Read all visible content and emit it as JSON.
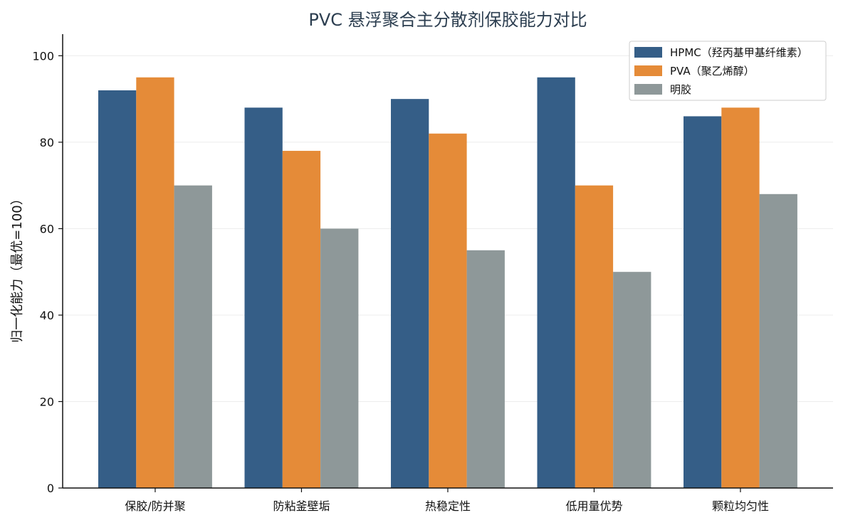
{
  "chart_data": {
    "type": "bar",
    "title": "PVC 悬浮聚合主分散剂保胶能力对比",
    "xlabel": "",
    "ylabel": "归一化能力（最优=100）",
    "categories": [
      "保胶/防并聚",
      "防粘釜壁垢",
      "热稳定性",
      "低用量优势",
      "颗粒均匀性"
    ],
    "series": [
      {
        "name": "HPMC（羟丙基甲基纤维素）",
        "color": "#355e87",
        "values": [
          92,
          88,
          90,
          95,
          86
        ]
      },
      {
        "name": "PVA（聚乙烯醇）",
        "color": "#e58b38",
        "values": [
          95,
          78,
          82,
          70,
          88
        ]
      },
      {
        "name": "明胶",
        "color": "#8e9899",
        "values": [
          70,
          60,
          55,
          50,
          68
        ]
      }
    ],
    "ylim": [
      0,
      105
    ],
    "yticks": [
      0,
      20,
      40,
      60,
      80,
      100
    ],
    "grid": "horizontal",
    "legend_position": "top-right"
  }
}
